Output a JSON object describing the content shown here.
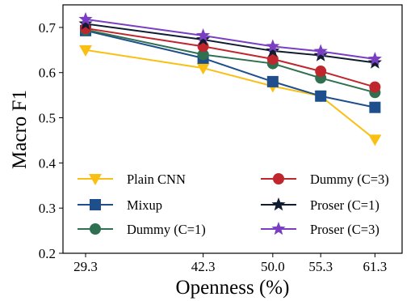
{
  "chart_data": {
    "type": "line",
    "xlabel": "Openness (%)",
    "ylabel": "Macro F1",
    "x": [
      29.3,
      42.3,
      50.0,
      55.3,
      61.3
    ],
    "xticks": [
      "29.3",
      "42.3",
      "50.0",
      "55.3",
      "61.3"
    ],
    "ylim": [
      0.2,
      0.75
    ],
    "yticks": [
      "0.2",
      "0.3",
      "0.4",
      "0.5",
      "0.6",
      "0.7"
    ],
    "grid": false,
    "legend_position": "bottom",
    "series": [
      {
        "name": "Plain CNN",
        "marker": "triangle-down",
        "color": "#f9c013",
        "values": [
          0.65,
          0.61,
          0.57,
          0.548,
          0.452
        ]
      },
      {
        "name": "Mixup",
        "marker": "square",
        "color": "#1f4e8c",
        "values": [
          0.693,
          0.632,
          0.58,
          0.548,
          0.523
        ]
      },
      {
        "name": "Dummy (C=1)",
        "marker": "circle",
        "color": "#2e7050",
        "values": [
          0.695,
          0.64,
          0.62,
          0.588,
          0.556
        ]
      },
      {
        "name": "Dummy (C=3)",
        "marker": "circle",
        "color": "#c0262d",
        "values": [
          0.698,
          0.658,
          0.63,
          0.603,
          0.568
        ]
      },
      {
        "name": "Proser (C=1)",
        "marker": "star",
        "color": "#101c30",
        "values": [
          0.708,
          0.673,
          0.648,
          0.638,
          0.622
        ]
      },
      {
        "name": "Proser (C=3)",
        "marker": "star",
        "color": "#7a3ec2",
        "values": [
          0.718,
          0.682,
          0.658,
          0.647,
          0.63
        ]
      }
    ]
  }
}
